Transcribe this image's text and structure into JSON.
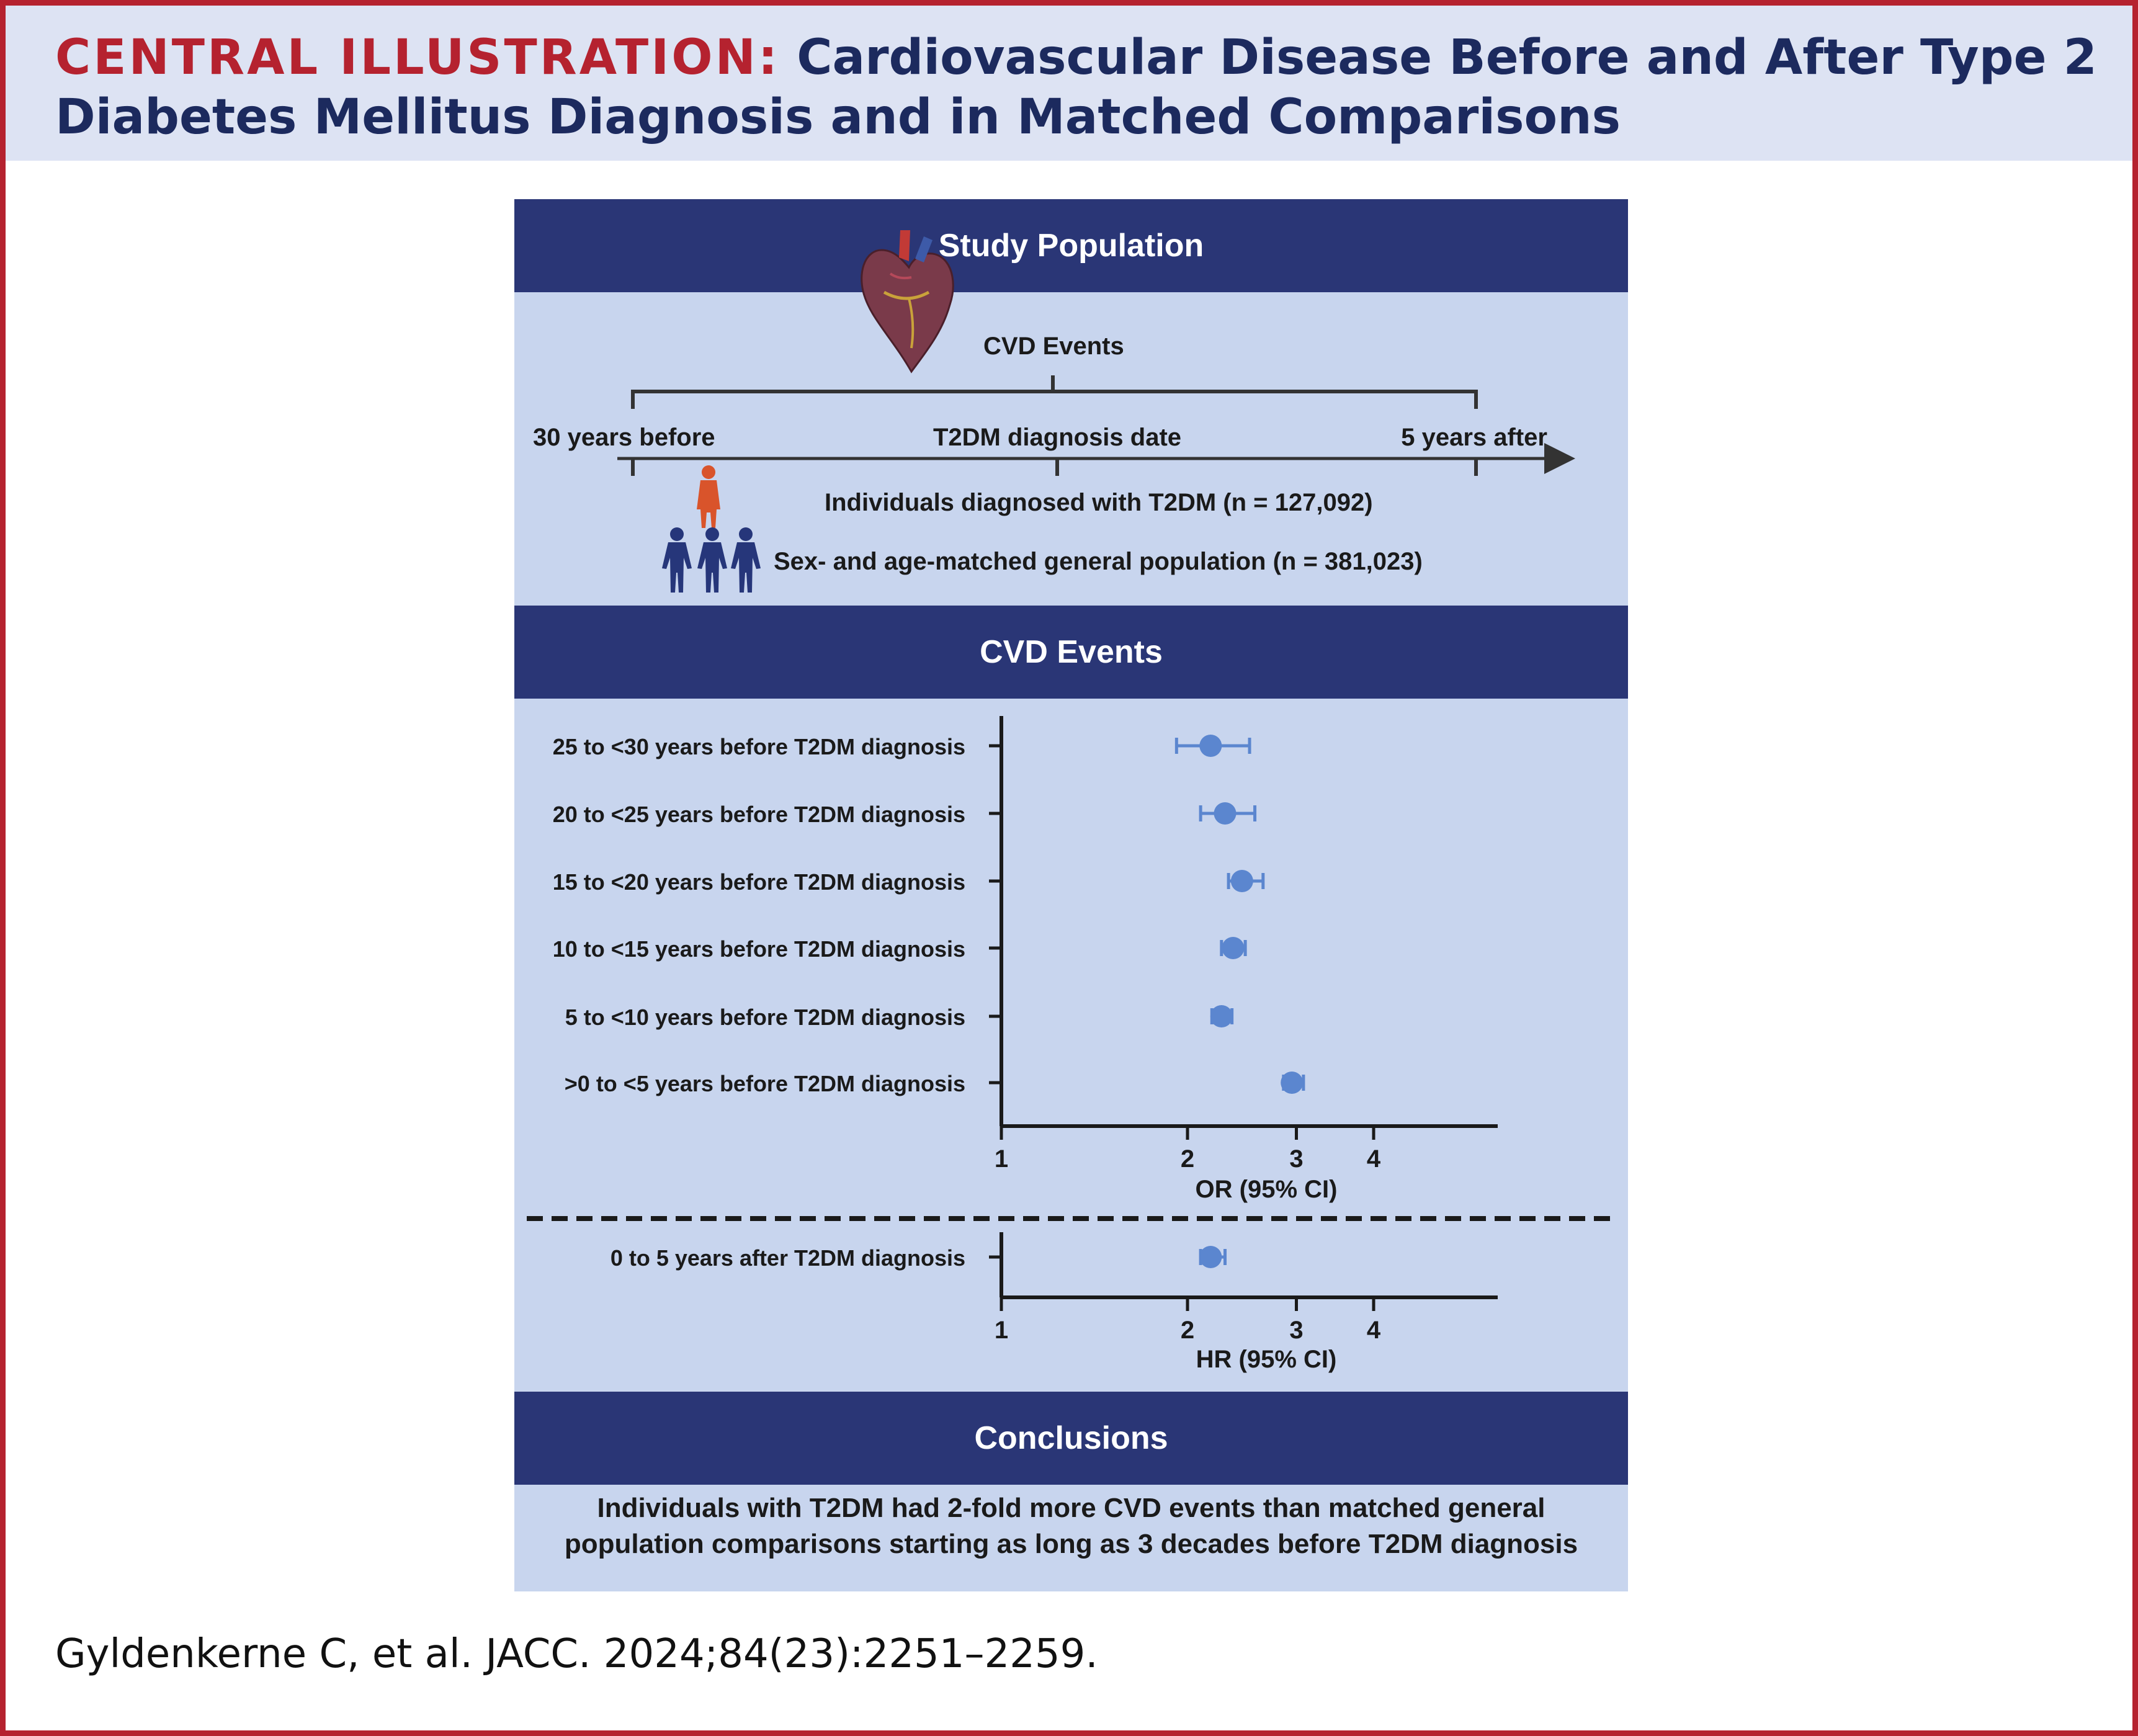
{
  "header": {
    "prefix": "CENTRAL ILLUSTRATION:",
    "title": "Cardiovascular Disease Before and After Type 2 Diabetes Mellitus Diagnosis and in Matched Comparisons"
  },
  "colors": {
    "accent_red": "#b5222f",
    "navy": "#2a3676",
    "panel_bg": "#c8d5ee",
    "header_bg": "#dde3f3",
    "marker_blue": "#5b86cf",
    "person_orange": "#d9542b",
    "person_navy": "#26367a"
  },
  "study_population": {
    "heading": "Study Population",
    "events_label": "CVD Events",
    "timeline_start": "30 years before",
    "timeline_mid": "T2DM diagnosis date",
    "timeline_end": "5 years after",
    "group_t2dm": "Individuals diagnosed with T2DM (n = 127,092)",
    "group_matched": "Sex- and age-matched general population (n = 381,023)",
    "icons": [
      "heart-icon",
      "person-icon",
      "group-of-people-icon"
    ]
  },
  "cvd_events": {
    "heading": "CVD Events"
  },
  "chart_data": [
    {
      "type": "scatter",
      "subtype": "forest-plot",
      "xlabel": "OR (95% CI)",
      "xscale": "log",
      "xlim": [
        1,
        4.4
      ],
      "xticks": [
        "1",
        "2",
        "3",
        "4"
      ],
      "categories": [
        "25 to <30 years before T2DM diagnosis",
        "20 to <25 years before T2DM diagnosis",
        "15 to <20 years before T2DM diagnosis",
        "10 to <15 years before T2DM diagnosis",
        "5 to <10 years before T2DM diagnosis",
        ">0 to <5 years before T2DM diagnosis"
      ],
      "estimates": [
        2.18,
        2.3,
        2.45,
        2.37,
        2.27,
        2.95
      ],
      "ci_low": [
        1.92,
        2.1,
        2.33,
        2.27,
        2.19,
        2.86
      ],
      "ci_high": [
        2.52,
        2.57,
        2.65,
        2.48,
        2.36,
        3.08
      ]
    },
    {
      "type": "scatter",
      "subtype": "forest-plot",
      "xlabel": "HR (95% CI)",
      "xscale": "log",
      "xlim": [
        1,
        4.4
      ],
      "xticks": [
        "1",
        "2",
        "3",
        "4"
      ],
      "categories": [
        "0 to 5 years after T2DM diagnosis"
      ],
      "estimates": [
        2.18
      ],
      "ci_low": [
        2.1
      ],
      "ci_high": [
        2.3
      ]
    }
  ],
  "conclusions": {
    "heading": "Conclusions",
    "text": "Individuals with T2DM had 2-fold more CVD events than matched general population comparisons starting as long as 3 decades before T2DM diagnosis"
  },
  "citation": "Gyldenkerne C, et al. JACC. 2024;84(23):2251–2259."
}
